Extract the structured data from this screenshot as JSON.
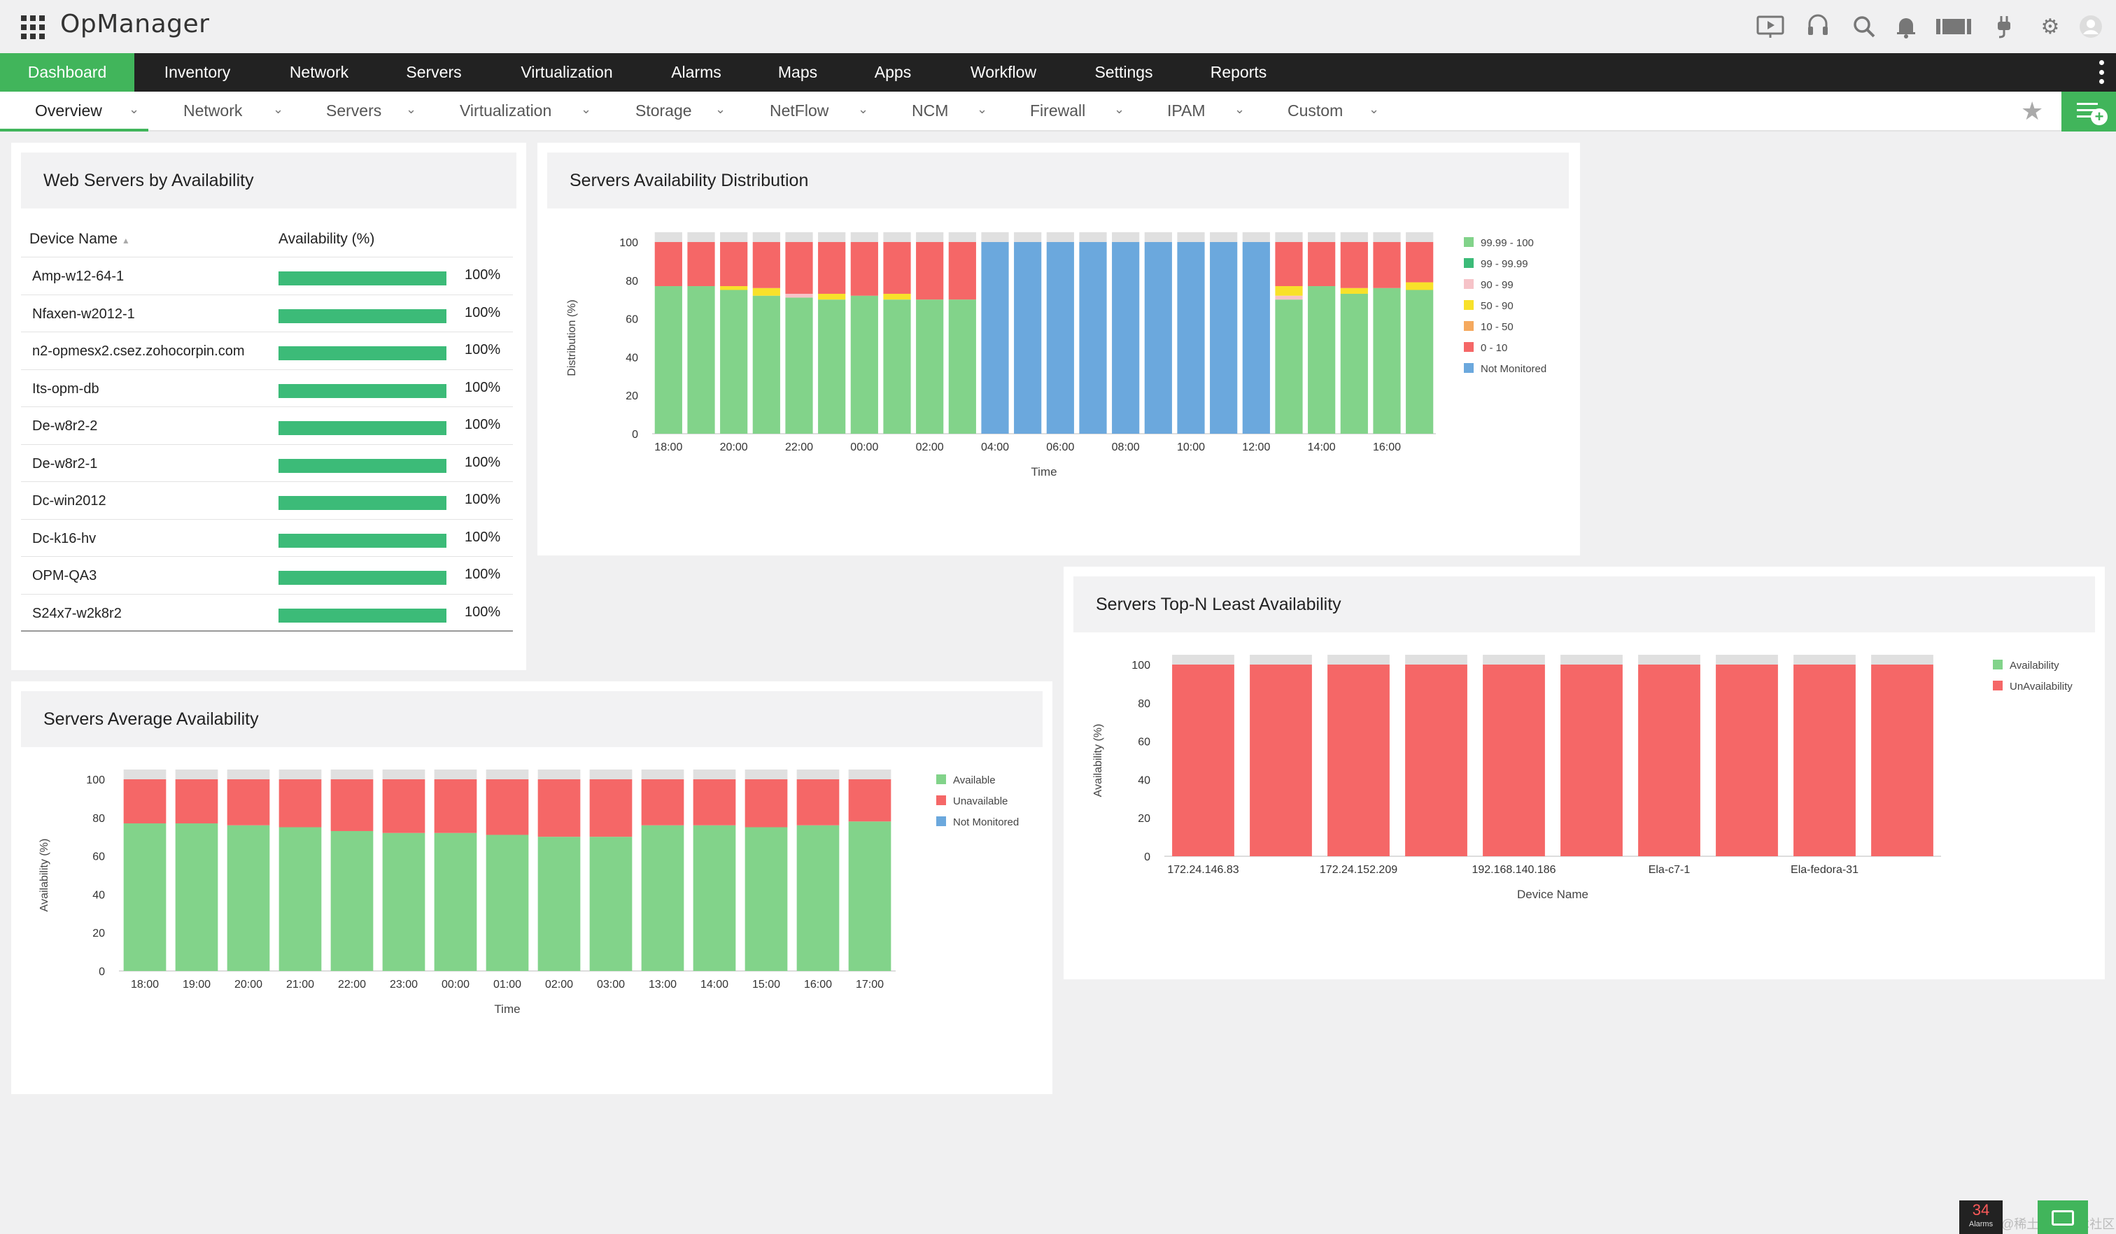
{
  "app": {
    "title": "OpManager"
  },
  "top_icons": [
    "video-icon",
    "headset-icon",
    "search-icon",
    "bell-icon",
    "battery-icon",
    "plug-icon",
    "gear-icon",
    "user-avatar-icon"
  ],
  "main_nav": [
    "Dashboard",
    "Inventory",
    "Network",
    "Servers",
    "Virtualization",
    "Alarms",
    "Maps",
    "Apps",
    "Workflow",
    "Settings",
    "Reports"
  ],
  "sub_nav": [
    "Overview",
    "Network",
    "Servers",
    "Virtualization",
    "Storage",
    "NetFlow",
    "NCM",
    "Firewall",
    "IPAM",
    "Custom"
  ],
  "colors": {
    "accent": "#41b55b",
    "available": "#82d38a",
    "unavailable": "#f56767",
    "not_monitored": "#6ba8dd",
    "bar_gray": "#e0e0e0",
    "pct_bar": "#3cbb78"
  },
  "web_servers": {
    "title": "Web Servers by Availability",
    "col_device": "Device Name",
    "col_availability": "Availability (%)",
    "rows": [
      {
        "name": "Amp-w12-64-1",
        "value": "100%",
        "fraction": 1.0
      },
      {
        "name": "Nfaxen-w2012-1",
        "value": "100%",
        "fraction": 1.0
      },
      {
        "name": "n2-opmesx2.csez.zohocorpin.com",
        "value": "100%",
        "fraction": 1.0
      },
      {
        "name": "Its-opm-db",
        "value": "100%",
        "fraction": 1.0
      },
      {
        "name": "De-w8r2-2",
        "value": "100%",
        "fraction": 1.0
      },
      {
        "name": "De-w8r2-1",
        "value": "100%",
        "fraction": 1.0
      },
      {
        "name": "Dc-win2012",
        "value": "100%",
        "fraction": 1.0
      },
      {
        "name": "Dc-k16-hv",
        "value": "100%",
        "fraction": 1.0
      },
      {
        "name": "OPM-QA3",
        "value": "100%",
        "fraction": 1.0
      },
      {
        "name": "S24x7-w2k8r2",
        "value": "100%",
        "fraction": 1.0
      }
    ]
  },
  "distribution": {
    "title": "Servers Availability Distribution",
    "chart_data": {
      "type": "bar",
      "stacked": true,
      "title": "Servers Availability Distribution",
      "xlabel": "Time",
      "ylabel": "Distribution (%)",
      "ylim": [
        0,
        100
      ],
      "yticks": [
        0,
        20,
        40,
        60,
        80,
        100
      ],
      "legend_position": "right",
      "categories": [
        "18:00",
        "19:00",
        "20:00",
        "21:00",
        "22:00",
        "23:00",
        "00:00",
        "01:00",
        "02:00",
        "03:00",
        "04:00",
        "05:00",
        "06:00",
        "07:00",
        "08:00",
        "09:00",
        "10:00",
        "11:00",
        "12:00",
        "13:00",
        "14:00",
        "15:00",
        "16:00",
        "17:00"
      ],
      "xtick_labels": [
        "18:00",
        "20:00",
        "22:00",
        "00:00",
        "02:00",
        "04:00",
        "06:00",
        "08:00",
        "10:00",
        "12:00",
        "14:00",
        "16:00"
      ],
      "series": [
        {
          "name": "99.99 - 100",
          "color": "#82d38a",
          "values": [
            77,
            77,
            75,
            72,
            71,
            70,
            72,
            70,
            70,
            70,
            0,
            0,
            0,
            0,
            0,
            0,
            0,
            0,
            0,
            70,
            77,
            73,
            76,
            75
          ]
        },
        {
          "name": "99 - 99.99",
          "color": "#3cbb78",
          "values": [
            0,
            0,
            0,
            0,
            0,
            0,
            0,
            0,
            0,
            0,
            0,
            0,
            0,
            0,
            0,
            0,
            0,
            0,
            0,
            0,
            0,
            0,
            0,
            0
          ]
        },
        {
          "name": "90 - 99",
          "color": "#f6c3c8",
          "values": [
            0,
            0,
            0,
            0,
            2,
            0,
            0,
            0,
            0,
            0,
            0,
            0,
            0,
            0,
            0,
            0,
            0,
            0,
            0,
            2,
            0,
            0,
            0,
            0
          ]
        },
        {
          "name": "50 - 90",
          "color": "#f8e12a",
          "values": [
            0,
            0,
            2,
            4,
            0,
            3,
            0,
            3,
            0,
            0,
            0,
            0,
            0,
            0,
            0,
            0,
            0,
            0,
            0,
            5,
            0,
            3,
            0,
            4
          ]
        },
        {
          "name": "10 - 50",
          "color": "#f5a95e",
          "values": [
            0,
            0,
            0,
            0,
            0,
            0,
            0,
            0,
            0,
            0,
            0,
            0,
            0,
            0,
            0,
            0,
            0,
            0,
            0,
            0,
            0,
            0,
            0,
            0
          ]
        },
        {
          "name": "0 - 10",
          "color": "#f56767",
          "values": [
            23,
            23,
            23,
            24,
            27,
            27,
            28,
            27,
            30,
            30,
            0,
            0,
            0,
            0,
            0,
            0,
            0,
            0,
            0,
            23,
            23,
            24,
            24,
            21
          ]
        },
        {
          "name": "Not Monitored",
          "color": "#6ba8dd",
          "values": [
            0,
            0,
            0,
            0,
            0,
            0,
            0,
            0,
            0,
            0,
            100,
            100,
            100,
            100,
            100,
            100,
            100,
            100,
            100,
            0,
            0,
            0,
            0,
            0
          ]
        }
      ]
    }
  },
  "average": {
    "title": "Servers Average Availability",
    "chart_data": {
      "type": "bar",
      "stacked": true,
      "title": "Servers Average Availability",
      "xlabel": "Time",
      "ylabel": "Availability (%)",
      "ylim": [
        0,
        100
      ],
      "yticks": [
        0,
        20,
        40,
        60,
        80,
        100
      ],
      "legend_position": "right",
      "categories": [
        "18:00",
        "19:00",
        "20:00",
        "21:00",
        "22:00",
        "23:00",
        "00:00",
        "01:00",
        "02:00",
        "03:00",
        "13:00",
        "14:00",
        "15:00",
        "16:00",
        "17:00"
      ],
      "series": [
        {
          "name": "Available",
          "color": "#82d38a",
          "values": [
            77,
            77,
            76,
            75,
            73,
            72,
            72,
            71,
            70,
            70,
            76,
            76,
            75,
            76,
            78
          ]
        },
        {
          "name": "Unavailable",
          "color": "#f56767",
          "values": [
            23,
            23,
            24,
            25,
            27,
            28,
            28,
            29,
            30,
            30,
            24,
            24,
            25,
            24,
            22
          ]
        },
        {
          "name": "Not Monitored",
          "color": "#6ba8dd",
          "values": [
            0,
            0,
            0,
            0,
            0,
            0,
            0,
            0,
            0,
            0,
            0,
            0,
            0,
            0,
            0
          ]
        }
      ]
    }
  },
  "topn": {
    "title": "Servers Top-N Least Availability",
    "chart_data": {
      "type": "bar",
      "stacked": true,
      "title": "Servers Top-N Least Availability",
      "xlabel": "Device Name",
      "ylabel": "Availability (%)",
      "ylim": [
        0,
        100
      ],
      "yticks": [
        0,
        20,
        40,
        60,
        80,
        100
      ],
      "legend_position": "right",
      "categories": [
        "172.24.146.83",
        "",
        "172.24.152.209",
        "",
        "192.168.140.186",
        "",
        "Ela-c7-1",
        "",
        "Ela-fedora-31",
        ""
      ],
      "xtick_labels": [
        "172.24.146.83",
        "172.24.152.209",
        "192.168.140.186",
        "Ela-c7-1",
        "Ela-fedora-31"
      ],
      "series": [
        {
          "name": "Availability",
          "color": "#82d38a",
          "values": [
            0,
            0,
            0,
            0,
            0,
            0,
            0,
            0,
            0,
            0
          ]
        },
        {
          "name": "UnAvailability",
          "color": "#f56767",
          "values": [
            100,
            100,
            100,
            100,
            100,
            100,
            100,
            100,
            100,
            100
          ]
        }
      ]
    }
  },
  "footer": {
    "alarm_count": "34",
    "alarm_label": "Alarms",
    "watermark": "@稀土掘金技术社区"
  }
}
